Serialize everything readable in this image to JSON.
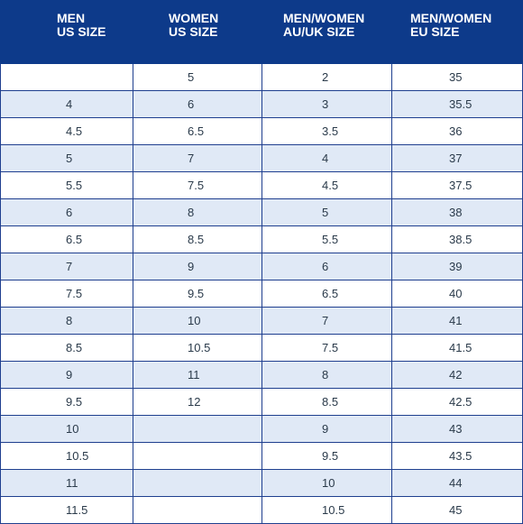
{
  "colors": {
    "header_background": "#0d3a8a",
    "header_text": "#ffffff",
    "alt_row": "#e0e9f6",
    "grid_lines": "#1f3f8f"
  },
  "headers": [
    "MEN\nUS SIZE",
    "WOMEN\nUS SIZE",
    "MEN/WOMEN\nAU/UK SIZE",
    "MEN/WOMEN\nEU SIZE"
  ],
  "rows": [
    [
      "",
      "5",
      "2",
      "35"
    ],
    [
      "4",
      "6",
      "3",
      "35.5"
    ],
    [
      "4.5",
      "6.5",
      "3.5",
      "36"
    ],
    [
      "5",
      "7",
      "4",
      "37"
    ],
    [
      "5.5",
      "7.5",
      "4.5",
      "37.5"
    ],
    [
      "6",
      "8",
      "5",
      "38"
    ],
    [
      "6.5",
      "8.5",
      "5.5",
      "38.5"
    ],
    [
      "7",
      "9",
      "6",
      "39"
    ],
    [
      "7.5",
      "9.5",
      "6.5",
      "40"
    ],
    [
      "8",
      "10",
      "7",
      "41"
    ],
    [
      "8.5",
      "10.5",
      "7.5",
      "41.5"
    ],
    [
      "9",
      "11",
      "8",
      "42"
    ],
    [
      "9.5",
      "12",
      "8.5",
      "42.5"
    ],
    [
      "10",
      "",
      "9",
      "43"
    ],
    [
      "10.5",
      "",
      "9.5",
      "43.5"
    ],
    [
      "11",
      "",
      "10",
      "44"
    ],
    [
      "11.5",
      "",
      "10.5",
      "45"
    ]
  ]
}
